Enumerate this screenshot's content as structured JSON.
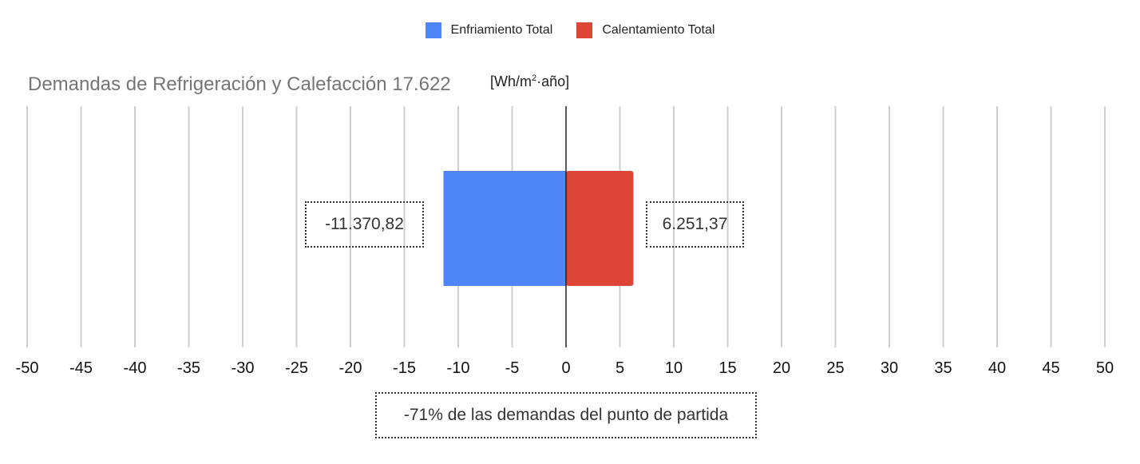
{
  "chart_data": {
    "type": "bar",
    "orientation": "horizontal",
    "title": "Demandas de Refrigeración y Calefacción 17.622",
    "unit": "[Wh/m²·año]",
    "unit_parts": {
      "base": "[Wh/m",
      "sup": "2",
      "tail": "·año]"
    },
    "xlim": [
      -50,
      50
    ],
    "x_ticks": [
      -50,
      -45,
      -40,
      -35,
      -30,
      -25,
      -20,
      -15,
      -10,
      -5,
      0,
      5,
      10,
      15,
      20,
      25,
      30,
      35,
      40,
      45,
      50
    ],
    "grid": true,
    "legend_position": "top-center",
    "series": [
      {
        "name": "Enfriamiento Total",
        "value": -11.37082,
        "label": "-11.370,82",
        "color": "#4f86f7"
      },
      {
        "name": "Calentamiento Total",
        "value": 6.25137,
        "label": "6.251,37",
        "color": "#dd4637"
      }
    ],
    "annotation": "-71% de las demandas del punto de partida"
  }
}
